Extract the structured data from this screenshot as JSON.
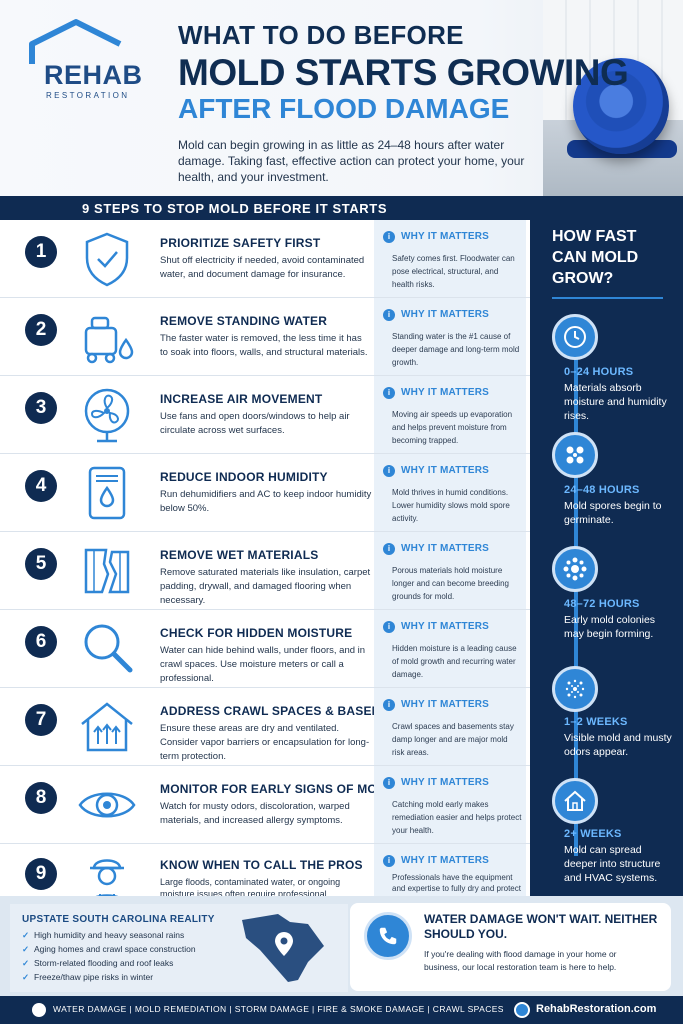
{
  "header": {
    "logo_main": "REHAB",
    "logo_sub": "RESTORATION",
    "title_line1": "WHAT TO DO BEFORE",
    "title_line2": "MOLD STARTS GROWING",
    "title_line3": "AFTER FLOOD DAMAGE",
    "intro": "Mold can begin growing in as little as 24–48 hours after water damage. Taking fast, effective action can protect your home, your health, and your investment."
  },
  "steps_header": "9 STEPS TO STOP MOLD BEFORE IT STARTS",
  "why_label": "WHY IT MATTERS",
  "steps": [
    {
      "num": "1",
      "icon": "shield-check-icon",
      "title": "PRIORITIZE SAFETY FIRST",
      "desc": "Shut off electricity if needed, avoid contaminated water, and document damage for insurance.",
      "why": "Safety comes first. Floodwater can pose electrical, structural, and health risks."
    },
    {
      "num": "2",
      "icon": "water-extractor-icon",
      "title": "REMOVE STANDING WATER",
      "desc": "The faster water is removed, the less time it has to soak into floors, walls, and structural materials.",
      "why": "Standing water is the #1 cause of deeper damage and long-term mold growth."
    },
    {
      "num": "3",
      "icon": "fan-icon",
      "title": "INCREASE AIR MOVEMENT",
      "desc": "Use fans and open doors/windows to help air circulate across wet surfaces.",
      "why": "Moving air speeds up evaporation and helps prevent moisture from becoming trapped."
    },
    {
      "num": "4",
      "icon": "dehumidifier-icon",
      "title": "REDUCE INDOOR HUMIDITY",
      "desc": "Run dehumidifiers and AC  to keep indoor humidity below 50%.",
      "why": "Mold thrives in humid conditions. Lower humidity slows mold spore activity."
    },
    {
      "num": "5",
      "icon": "wet-materials-icon",
      "title": "REMOVE WET MATERIALS",
      "desc": "Remove saturated materials like insulation, carpet padding, drywall, and damaged flooring when necessary.",
      "why": "Porous materials hold moisture longer and can become breeding grounds for mold."
    },
    {
      "num": "6",
      "icon": "magnifier-icon",
      "title": "CHECK FOR HIDDEN MOISTURE",
      "desc": "Water can hide behind walls, under floors, and in crawl spaces. Use moisture meters or call a professional.",
      "why": "Hidden moisture is a leading cause of mold growth and recurring water damage."
    },
    {
      "num": "7",
      "icon": "house-vent-icon",
      "title": "ADDRESS CRAWL SPACES & BASEMENTS",
      "desc": "Ensure these areas are dry and ventilated. Consider vapor barriers or encapsulation for long-term protection.",
      "why": "Crawl spaces and basements stay damp longer and are major mold risk areas."
    },
    {
      "num": "8",
      "icon": "eye-icon",
      "title": "MONITOR FOR EARLY SIGNS OF MOLD",
      "desc": "Watch for musty odors, discoloration, warped materials, and increased allergy symptoms.",
      "why": "Catching mold early makes remediation easier and helps protect your health."
    },
    {
      "num": "9",
      "icon": "worker-icon",
      "title": "KNOW WHEN TO CALL THE PROS",
      "desc": "Large floods, contaminated water, or ongoing moisture issues often require professional restoration.",
      "why": "Professionals have the equipment and expertise to fully dry and protect your property."
    }
  ],
  "sidebar": {
    "title": "HOW FAST CAN MOLD GROW?",
    "timeline": [
      {
        "icon": "clock-icon",
        "heading": "0–24 HOURS",
        "text": "Materials absorb moisture and humidity rises."
      },
      {
        "icon": "spores-icon",
        "heading": "24–48 HOURS",
        "text": "Mold spores begin to germinate."
      },
      {
        "icon": "colony-icon",
        "heading": "48–72 HOURS",
        "text": "Early mold colonies may begin forming."
      },
      {
        "icon": "spread-icon",
        "heading": "1–2 WEEKS",
        "text": "Visible mold and musty odors appear."
      },
      {
        "icon": "house-icon",
        "heading": "2+ WEEKS",
        "text": "Mold can spread deeper into structure and HVAC systems."
      }
    ]
  },
  "sc_reality": {
    "title": "UPSTATE SOUTH CAROLINA REALITY",
    "items": [
      "High humidity and heavy seasonal rains",
      "Aging homes and crawl space construction",
      "Storm-related flooding and roof leaks",
      "Freeze/thaw pipe risks in winter"
    ]
  },
  "cta": {
    "title": "WATER DAMAGE WON'T WAIT. NEITHER SHOULD YOU.",
    "text": "If you're dealing with flood damage in your home or business, our local restoration team is here to help."
  },
  "footer": {
    "links": "WATER DAMAGE  |  MOLD REMEDIATION  |  STORM DAMAGE  |  FIRE & SMOKE DAMAGE  |  CRAWL SPACES",
    "site": "RehabRestoration.com"
  },
  "colors": {
    "navy": "#0f2b52",
    "accent": "#2f86d6",
    "light": "#e9f1f9"
  }
}
